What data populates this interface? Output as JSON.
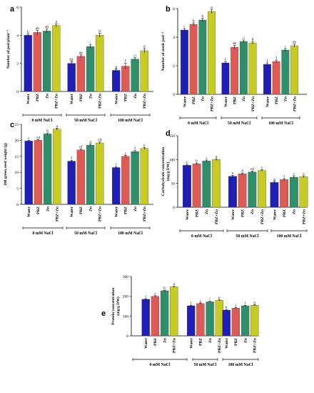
{
  "figure": {
    "colors": {
      "Water": "#1f1fb8",
      "PBZ": "#e05a55",
      "Zn": "#2e8f6a",
      "PBZ+Zn": "#c8cc22",
      "letter_default": "#111111",
      "letter_green": "#1a9a6a",
      "letter_red": "#d43a3a"
    }
  },
  "chart_data": [
    {
      "panel": "a",
      "type": "bar",
      "ylabel": "Number of pod plant⁻¹",
      "ylim": [
        0,
        6
      ],
      "yticks": [
        0,
        2,
        4,
        6
      ],
      "treatments": [
        "Water",
        "PBZ",
        "Zn",
        "PBZ+Zn"
      ],
      "groups": [
        "0 mM NaCl",
        "50 mM NaCl",
        "100 mM NaCl"
      ],
      "values": [
        [
          4.0,
          4.2,
          4.3,
          4.7
        ],
        [
          2.0,
          2.5,
          3.2,
          4.0
        ],
        [
          1.5,
          1.8,
          2.3,
          2.9
        ]
      ],
      "errors": [
        [
          0.1,
          0.15,
          0.15,
          0.12
        ],
        [
          0.1,
          0.1,
          0.12,
          0.15
        ],
        [
          0.1,
          0.2,
          0.1,
          0.15
        ]
      ],
      "letters": [
        [
          "b",
          "ab",
          "ab",
          "a"
        ],
        [
          "fg",
          "de",
          "c",
          "b"
        ],
        [
          "g",
          "f",
          "ef",
          "d"
        ]
      ],
      "letter_colors": [
        [
          "default",
          "default",
          "default",
          "default"
        ],
        [
          "default",
          "default",
          "green",
          "default"
        ],
        [
          "default",
          "default",
          "green",
          "default"
        ]
      ]
    },
    {
      "panel": "b",
      "type": "bar",
      "ylabel": "Number of seeds pod⁻¹",
      "ylim": [
        0,
        6
      ],
      "yticks": [
        0,
        2,
        4,
        6
      ],
      "treatments": [
        "Water",
        "PBZ",
        "Zn",
        "PBZ+Zn"
      ],
      "groups": [
        "0 mM NaCl",
        "50 mM NaCl",
        "100 mM NaCl"
      ],
      "values": [
        [
          4.5,
          4.9,
          5.2,
          5.8
        ],
        [
          2.2,
          3.3,
          3.7,
          3.6
        ],
        [
          2.1,
          2.3,
          3.1,
          3.4
        ]
      ],
      "errors": [
        [
          0.1,
          0.1,
          0.12,
          0.15
        ],
        [
          0.1,
          0.12,
          0.1,
          0.1
        ],
        [
          0.1,
          0.1,
          0.1,
          0.1
        ]
      ],
      "letters": [
        [
          "c",
          "b",
          "b",
          "a"
        ],
        [
          "f",
          "de",
          "d",
          "d"
        ],
        [
          "f",
          "f",
          "e",
          "dc"
        ]
      ],
      "letter_colors": [
        [
          "default",
          "default",
          "default",
          "default"
        ],
        [
          "default",
          "default",
          "green",
          "default"
        ],
        [
          "default",
          "default",
          "green",
          "default"
        ]
      ]
    },
    {
      "panel": "c",
      "type": "bar",
      "ylabel": "100 green seed weight (g)",
      "ylim": [
        0,
        25
      ],
      "yticks": [
        0,
        5,
        10,
        15,
        20,
        25
      ],
      "treatments": [
        "Water",
        "PBZ",
        "Zn",
        "PBZ+Zn"
      ],
      "groups": [
        "0 mM NaCl",
        "50 mM NaCl",
        "100 mM NaCl"
      ],
      "values": [
        [
          19.8,
          20.0,
          22.0,
          23.5
        ],
        [
          13.5,
          17.0,
          18.5,
          19.2
        ],
        [
          11.5,
          15.0,
          16.5,
          17.5
        ]
      ],
      "errors": [
        [
          0.2,
          0.2,
          0.3,
          0.3
        ],
        [
          0.3,
          0.3,
          0.3,
          0.3
        ],
        [
          0.3,
          0.3,
          0.3,
          0.3
        ]
      ],
      "letters": [
        [
          "c",
          "cd",
          "b",
          "a"
        ],
        [
          "f",
          "ef",
          "d",
          "cd"
        ],
        [
          "i",
          "g",
          "f",
          "e"
        ]
      ],
      "letter_colors": [
        [
          "default",
          "default",
          "default",
          "default"
        ],
        [
          "default",
          "default",
          "default",
          "default"
        ],
        [
          "default",
          "red",
          "default",
          "default"
        ]
      ]
    },
    {
      "panel": "d",
      "type": "bar",
      "ylabel": "Carbohydrate concentration\n(mg/g DW)",
      "ylim": [
        0,
        150
      ],
      "yticks": [
        0,
        50,
        100,
        150
      ],
      "treatments": [
        "Water",
        "PBZ",
        "Zn",
        "PBZ+Zn"
      ],
      "groups": [
        "0 mM NaCl",
        "50 mM NaCl",
        "100 mM NaCl"
      ],
      "values": [
        [
          88,
          91,
          97,
          100
        ],
        [
          65,
          70,
          74,
          77
        ],
        [
          52,
          58,
          63,
          64
        ]
      ],
      "errors": [
        [
          2,
          2,
          2,
          2
        ],
        [
          2,
          2,
          2,
          2
        ],
        [
          2,
          2,
          3,
          2
        ]
      ],
      "letters": [
        [
          "c",
          "b",
          "a",
          "a"
        ],
        [
          "e",
          "d",
          "cd",
          "c"
        ],
        [
          "g",
          "f",
          "e",
          "c"
        ]
      ],
      "letter_colors": [
        [
          "default",
          "default",
          "green",
          "default"
        ],
        [
          "default",
          "default",
          "default",
          "default"
        ],
        [
          "default",
          "default",
          "green",
          "default"
        ]
      ]
    },
    {
      "panel": "e",
      "type": "bar",
      "ylabel": "Protein concentration\n(mg/g DW)",
      "ylim": [
        0,
        300
      ],
      "yticks": [
        0,
        100,
        200,
        300
      ],
      "treatments": [
        "Water",
        "PBZ",
        "Zn",
        "PBZ+Zn"
      ],
      "groups": [
        "0 mM NaCl",
        "50 mM NaCl",
        "100 mM NaCl"
      ],
      "values": [
        [
          185,
          200,
          228,
          248
        ],
        [
          152,
          163,
          172,
          180
        ],
        [
          130,
          140,
          152,
          155
        ]
      ],
      "errors": [
        [
          3,
          3,
          3,
          3
        ],
        [
          3,
          3,
          3,
          3
        ],
        [
          3,
          3,
          3,
          3
        ]
      ],
      "letters": [
        [
          "d",
          "c",
          "b",
          "a"
        ],
        [
          "i",
          "g",
          "f",
          "e"
        ],
        [
          "k",
          "j",
          "i",
          "h"
        ]
      ],
      "letter_colors": [
        [
          "green",
          "default",
          "default",
          "default"
        ],
        [
          "default",
          "red",
          "green",
          "default"
        ],
        [
          "default",
          "default",
          "default",
          "default"
        ]
      ]
    }
  ]
}
